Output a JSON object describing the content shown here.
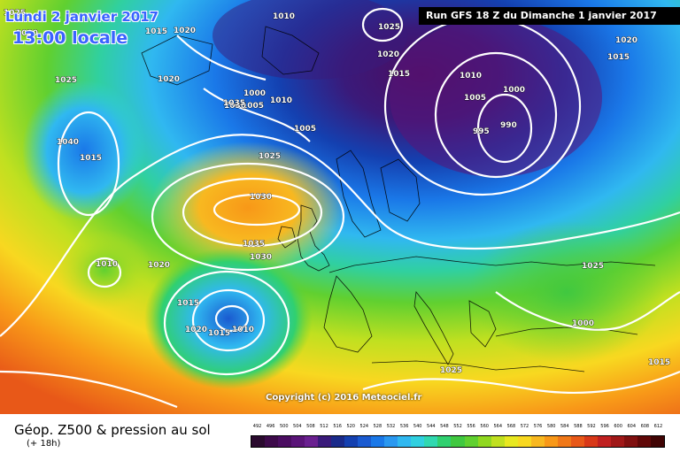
{
  "header": {
    "date": "Lundi 2 janvier 2017",
    "time": "13:00 locale",
    "run": "Run GFS 18 Z du Dimanche 1 janvier 2017"
  },
  "copyright": "Copyright (c) 2016 Meteociel.fr",
  "footer": {
    "title": "Géop. Z500 & pression au sol",
    "subtitle": "(+ 18h)"
  },
  "legend": {
    "values": [
      "492",
      "496",
      "500",
      "504",
      "508",
      "512",
      "516",
      "520",
      "524",
      "528",
      "532",
      "536",
      "540",
      "544",
      "548",
      "552",
      "556",
      "560",
      "564",
      "568",
      "572",
      "576",
      "580",
      "584",
      "588",
      "592",
      "596",
      "600",
      "604",
      "608",
      "612"
    ],
    "colors": [
      "#2a0a2e",
      "#3d0a4a",
      "#4b0d61",
      "#5a1478",
      "#6a2090",
      "#3a1a7a",
      "#1a2a8a",
      "#1440b0",
      "#1a5ad0",
      "#1a78e8",
      "#2a98f0",
      "#30b8f0",
      "#30d0e0",
      "#30d8b0",
      "#30d070",
      "#40c840",
      "#60d030",
      "#90d820",
      "#c0e020",
      "#e8e820",
      "#f8d820",
      "#f8b820",
      "#f89818",
      "#f07818",
      "#e85818",
      "#d83818",
      "#c02020",
      "#a01818",
      "#801010",
      "#600808",
      "#400404"
    ]
  },
  "isobars": [
    "1025",
    "1030",
    "1015",
    "1020",
    "1010",
    "1025",
    "1020",
    "1015",
    "1000",
    "1010",
    "990",
    "995",
    "1005",
    "1010",
    "1000",
    "1005",
    "1030",
    "1035",
    "1025",
    "1030",
    "1020",
    "1015",
    "1025",
    "1040",
    "1035",
    "1030",
    "1010",
    "1020",
    "1015",
    "1020",
    "1015",
    "1010",
    "1005",
    "1000",
    "1025",
    "1025",
    "1020",
    "1015",
    "1015"
  ]
}
